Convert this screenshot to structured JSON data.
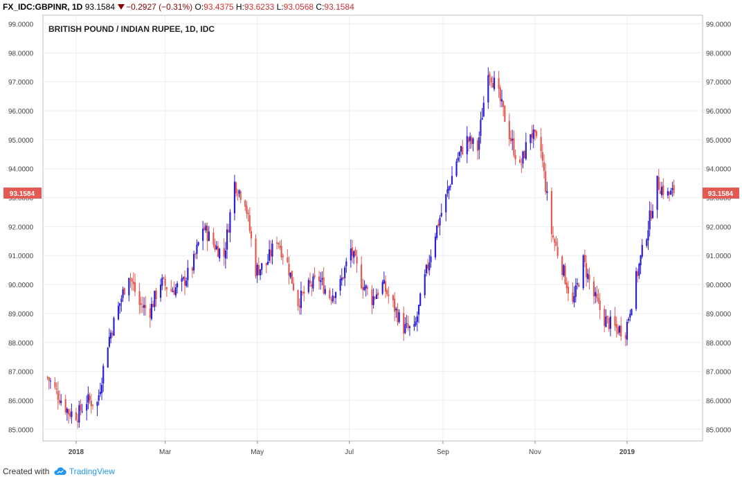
{
  "header": {
    "symbol": "FX_IDC:GBPINR, 1D",
    "last": "93.1584",
    "change": "−0.2927 (−0.31%)",
    "o_label": "O:",
    "o_value": "93.4375",
    "h_label": "H:",
    "h_value": "93.6233",
    "l_label": "L:",
    "l_value": "93.0568",
    "c_label": "C:",
    "c_value": "93.1584"
  },
  "footer": {
    "created_with": "Created with",
    "brand": "TradingView"
  },
  "colors": {
    "up": "#2a1fd6",
    "down": "#e25a52",
    "price_tag": "#e25a52",
    "grid": "#e9edf2"
  },
  "chart_data": {
    "type": "candlestick",
    "title": "BRITISH POUND / INDIAN RUPEE, 1D, IDC",
    "ylim": [
      84.6,
      99.3
    ],
    "y_ticks": [
      "99.0000",
      "98.0000",
      "97.0000",
      "96.0000",
      "95.0000",
      "94.0000",
      "93.0000",
      "92.0000",
      "91.0000",
      "90.0000",
      "89.0000",
      "88.0000",
      "87.0000",
      "86.0000",
      "85.0000"
    ],
    "x_labels": [
      "2018",
      "Mar",
      "May",
      "Jul",
      "Sep",
      "Nov",
      "2019"
    ],
    "last_price": "93.1584",
    "grid": true,
    "path": [
      [
        "2017-12-13",
        86.8
      ],
      [
        "2017-12-20",
        86.2
      ],
      [
        "2017-12-27",
        85.6
      ],
      [
        "2018-01-02",
        85.5
      ],
      [
        "2018-01-08",
        86.0
      ],
      [
        "2018-01-15",
        85.9
      ],
      [
        "2018-01-22",
        88.0
      ],
      [
        "2018-01-29",
        89.2
      ],
      [
        "2018-02-05",
        90.4
      ],
      [
        "2018-02-12",
        89.3
      ],
      [
        "2018-02-19",
        89.1
      ],
      [
        "2018-02-26",
        90.1
      ],
      [
        "2018-03-05",
        89.8
      ],
      [
        "2018-03-12",
        90.0
      ],
      [
        "2018-03-19",
        90.6
      ],
      [
        "2018-03-26",
        92.0
      ],
      [
        "2018-04-02",
        91.4
      ],
      [
        "2018-04-09",
        91.0
      ],
      [
        "2018-04-16",
        93.5
      ],
      [
        "2018-04-23",
        92.9
      ],
      [
        "2018-04-30",
        90.5
      ],
      [
        "2018-05-07",
        90.7
      ],
      [
        "2018-05-14",
        91.6
      ],
      [
        "2018-05-21",
        90.7
      ],
      [
        "2018-05-28",
        89.4
      ],
      [
        "2018-06-04",
        89.9
      ],
      [
        "2018-06-11",
        90.2
      ],
      [
        "2018-06-18",
        89.6
      ],
      [
        "2018-06-25",
        90.0
      ],
      [
        "2018-07-02",
        91.2
      ],
      [
        "2018-07-09",
        90.1
      ],
      [
        "2018-07-16",
        89.5
      ],
      [
        "2018-07-23",
        90.0
      ],
      [
        "2018-07-30",
        89.3
      ],
      [
        "2018-08-06",
        88.5
      ],
      [
        "2018-08-13",
        88.4
      ],
      [
        "2018-08-20",
        90.2
      ],
      [
        "2018-08-27",
        91.8
      ],
      [
        "2018-09-03",
        93.0
      ],
      [
        "2018-09-10",
        94.3
      ],
      [
        "2018-09-17",
        95.0
      ],
      [
        "2018-09-24",
        94.7
      ],
      [
        "2018-10-01",
        97.5
      ],
      [
        "2018-10-08",
        96.5
      ],
      [
        "2018-10-15",
        95.2
      ],
      [
        "2018-10-22",
        94.0
      ],
      [
        "2018-10-29",
        95.3
      ],
      [
        "2018-11-05",
        94.6
      ],
      [
        "2018-11-12",
        91.8
      ],
      [
        "2018-11-19",
        90.6
      ],
      [
        "2018-11-26",
        89.3
      ],
      [
        "2018-12-03",
        90.8
      ],
      [
        "2018-12-10",
        89.6
      ],
      [
        "2018-12-17",
        88.8
      ],
      [
        "2018-12-24",
        88.5
      ],
      [
        "2018-12-31",
        88.4
      ],
      [
        "2019-01-07",
        90.2
      ],
      [
        "2019-01-14",
        91.8
      ],
      [
        "2019-01-21",
        93.5
      ],
      [
        "2019-01-28",
        93.1
      ],
      [
        "2019-02-01",
        93.1584
      ]
    ]
  }
}
